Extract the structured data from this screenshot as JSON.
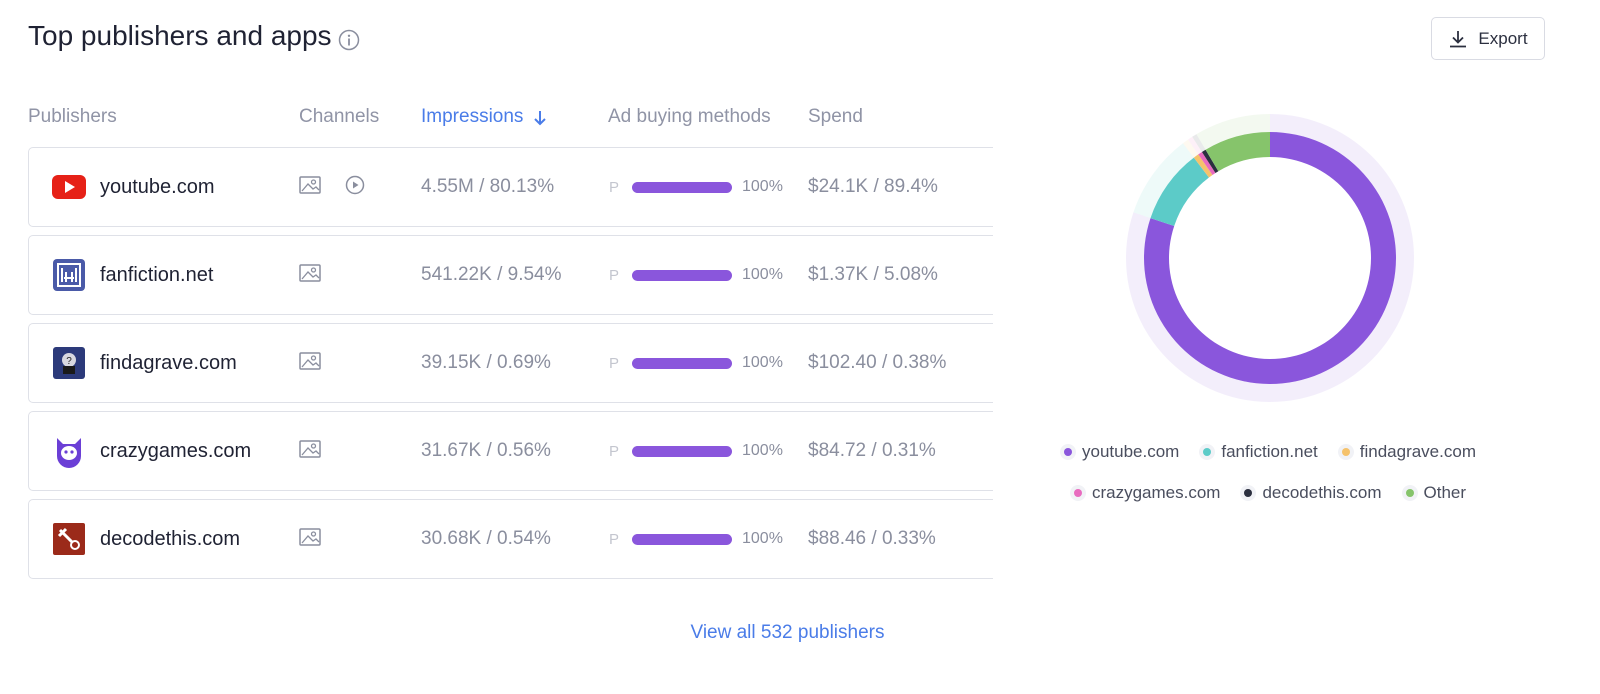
{
  "header": {
    "title": "Top publishers and apps",
    "export": "Export"
  },
  "table": {
    "columns": [
      "Publishers",
      "Channels",
      "Impressions",
      "Ad buying methods",
      "Spend"
    ],
    "rows": [
      {
        "publisher": "youtube.com",
        "impressions": "4.55M / 80.13%",
        "buying_method": "P",
        "buying_share": "100%",
        "spend": "$24.1K / 89.4%"
      },
      {
        "publisher": "fanfiction.net",
        "impressions": "541.22K / 9.54%",
        "buying_method": "P",
        "buying_share": "100%",
        "spend": "$1.37K / 5.08%"
      },
      {
        "publisher": "findagrave.com",
        "impressions": "39.15K / 0.69%",
        "buying_method": "P",
        "buying_share": "100%",
        "spend": "$102.40 / 0.38%"
      },
      {
        "publisher": "crazygames.com",
        "impressions": "31.67K / 0.56%",
        "buying_method": "P",
        "buying_share": "100%",
        "spend": "$84.72 / 0.31%"
      },
      {
        "publisher": "decodethis.com",
        "impressions": "30.68K / 0.54%",
        "buying_method": "P",
        "buying_share": "100%",
        "spend": "$88.46 / 0.33%"
      }
    ]
  },
  "chart_data": {
    "type": "donut",
    "categories": [
      "youtube.com",
      "fanfiction.net",
      "findagrave.com",
      "crazygames.com",
      "decodethis.com",
      "Other"
    ],
    "values": [
      80.13,
      9.54,
      0.69,
      0.56,
      0.54,
      8.54
    ],
    "colors": [
      "#8a56dc",
      "#5ccbc8",
      "#f5c26b",
      "#e86bbf",
      "#2b2f3f",
      "#86c46b"
    ]
  },
  "footer": {
    "link": "View all 532 publishers"
  }
}
